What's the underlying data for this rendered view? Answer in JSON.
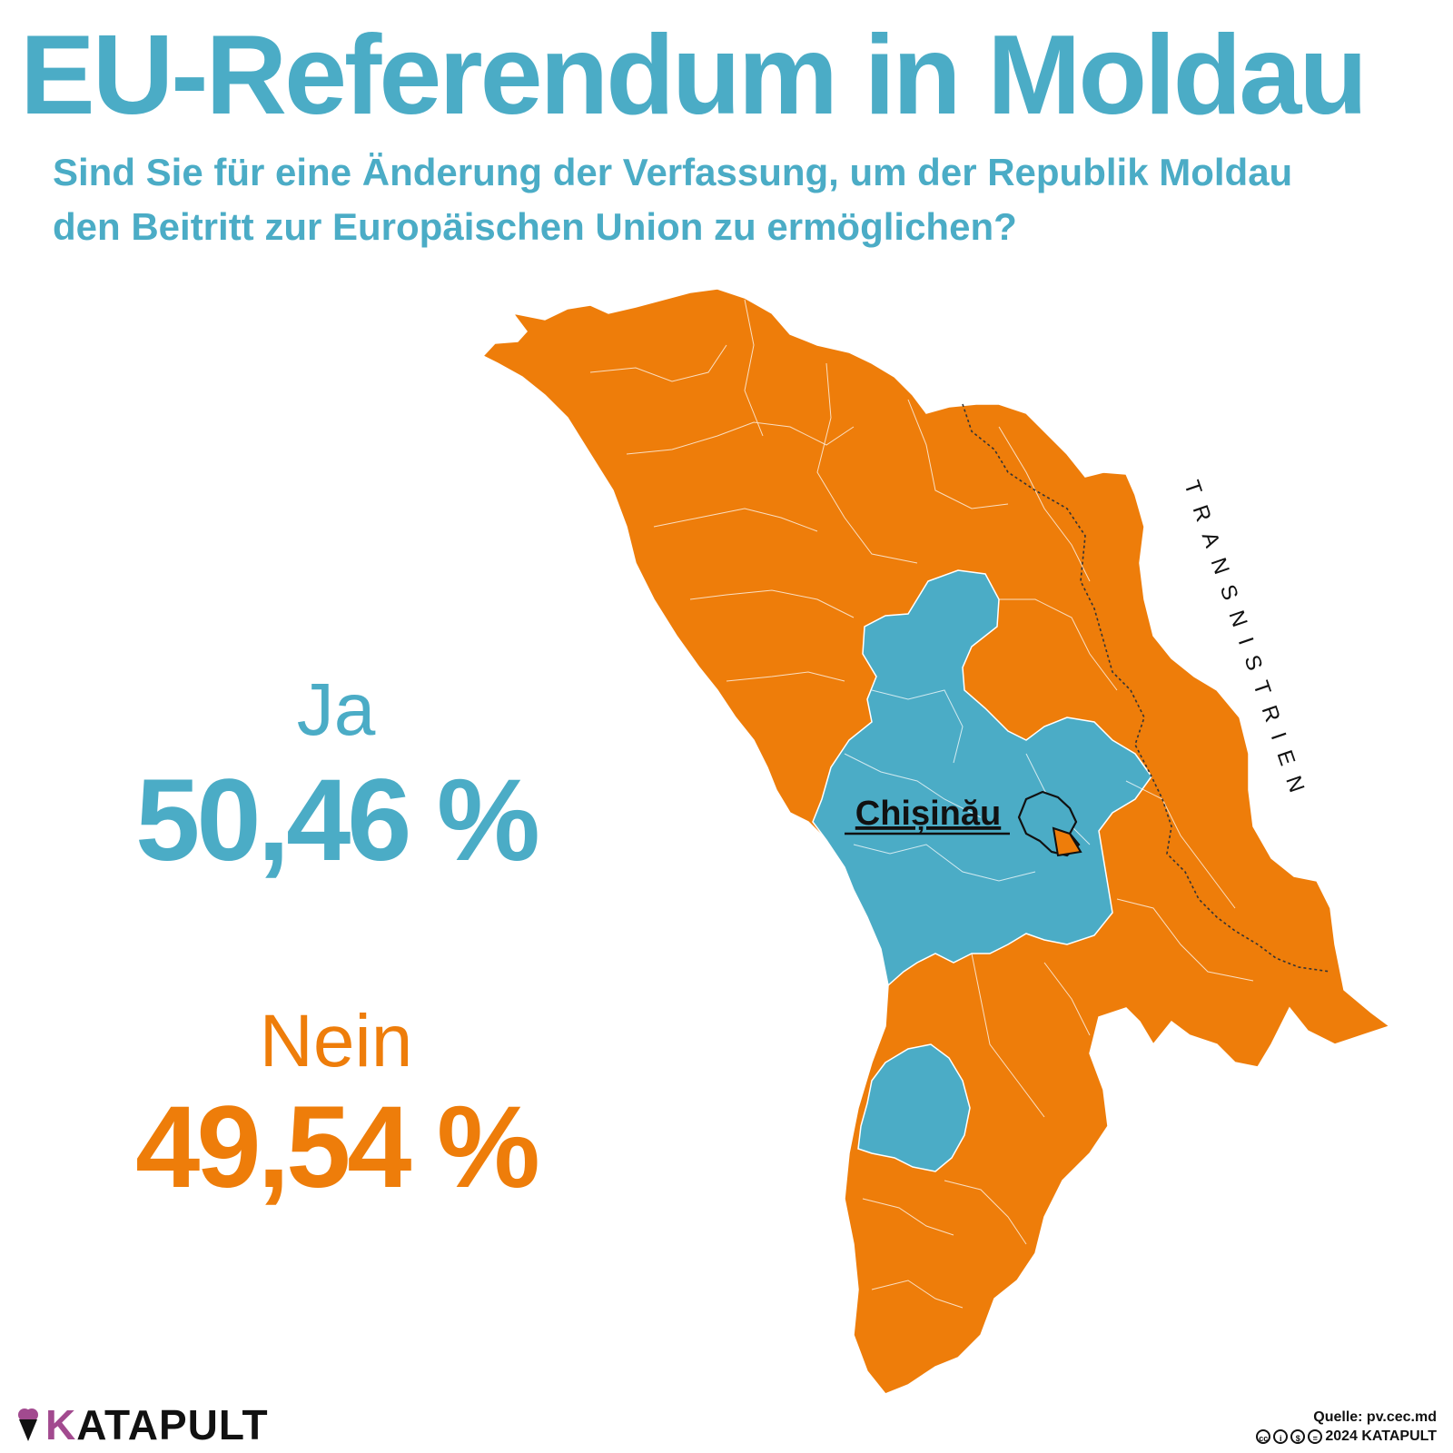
{
  "title": "EU-Referendum in Moldau",
  "subtitle_line1": "Sind Sie für eine Änderung der Verfassung, um der Republik Moldau",
  "subtitle_line2": "den Beitritt zur Europäischen Union zu ermöglichen?",
  "results": {
    "yes": {
      "label": "Ja",
      "value": "50,46 %",
      "share": 50.46,
      "color": "#4bacc6"
    },
    "no": {
      "label": "Nein",
      "value": "49,54 %",
      "share": 49.54,
      "color": "#ee7d0a"
    }
  },
  "map": {
    "region_label": "TRANSNISTRIEN",
    "city_label": "Chișinău",
    "colors": {
      "yes": "#4bacc6",
      "no": "#ee7d0a",
      "border": "#ffffff"
    }
  },
  "footer": {
    "brand_initial": "K",
    "brand_rest": "ATAPULT",
    "source": "Quelle: pv.cec.md",
    "license_text": "2024 KATAPULT",
    "brand_icon": "ice-cream-icon",
    "license_icons": [
      "cc-icon",
      "by-icon",
      "nc-icon",
      "nd-icon"
    ]
  }
}
